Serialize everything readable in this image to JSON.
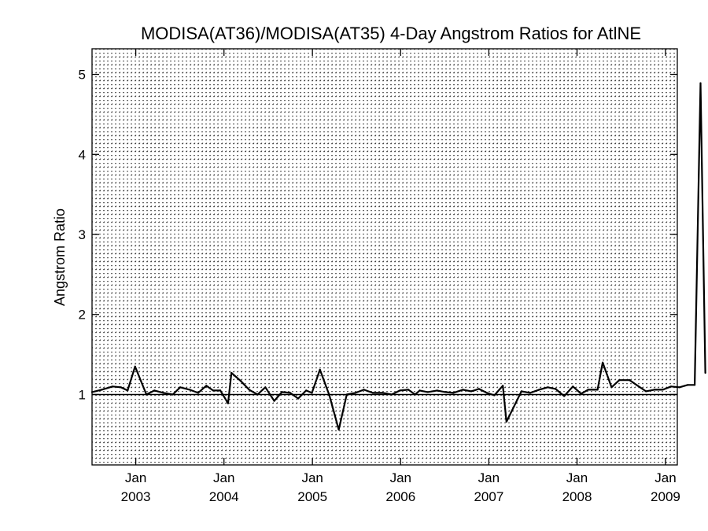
{
  "chart_data": {
    "type": "line",
    "title": "MODISA(AT36)/MODISA(AT35) 4-Day Angstrom Ratios for AtlNE",
    "xlabel": "",
    "ylabel": "Angstrom Ratio",
    "xlim": [
      "2002-07-04",
      "2009-02-19"
    ],
    "ylim": [
      0.12,
      5.32
    ],
    "x_ticks": [
      {
        "date": "2003-01-01",
        "label": "Jan",
        "year": "2003"
      },
      {
        "date": "2004-01-01",
        "label": "Jan",
        "year": "2004"
      },
      {
        "date": "2005-01-01",
        "label": "Jan",
        "year": "2005"
      },
      {
        "date": "2006-01-01",
        "label": "Jan",
        "year": "2006"
      },
      {
        "date": "2007-01-01",
        "label": "Jan",
        "year": "2007"
      },
      {
        "date": "2008-01-01",
        "label": "Jan",
        "year": "2008"
      },
      {
        "date": "2009-01-01",
        "label": "Jan",
        "year": "2009"
      }
    ],
    "y_ticks": [
      1,
      2,
      3,
      4,
      5
    ],
    "grid": "dotted",
    "reference_line": 1.0,
    "line_color": "#000000",
    "series": [
      {
        "points": [
          [
            "2002-07-04",
            1.03
          ],
          [
            "2002-08-13",
            1.06
          ],
          [
            "2002-09-27",
            1.1
          ],
          [
            "2002-10-31",
            1.09
          ],
          [
            "2002-11-28",
            1.05
          ],
          [
            "2002-12-29",
            1.35
          ],
          [
            "2003-02-14",
            1.0
          ],
          [
            "2003-03-19",
            1.05
          ],
          [
            "2003-04-26",
            1.02
          ],
          [
            "2003-06-03",
            1.0
          ],
          [
            "2003-07-04",
            1.09
          ],
          [
            "2003-08-12",
            1.06
          ],
          [
            "2003-09-16",
            1.02
          ],
          [
            "2003-10-20",
            1.11
          ],
          [
            "2003-11-17",
            1.05
          ],
          [
            "2003-12-17",
            1.05
          ],
          [
            "2004-01-18",
            0.89
          ],
          [
            "2004-02-01",
            1.27
          ],
          [
            "2004-03-10",
            1.17
          ],
          [
            "2004-04-14",
            1.06
          ],
          [
            "2004-05-19",
            1.0
          ],
          [
            "2004-06-20",
            1.09
          ],
          [
            "2004-07-27",
            0.92
          ],
          [
            "2004-08-28",
            1.03
          ],
          [
            "2004-10-01",
            1.02
          ],
          [
            "2004-11-03",
            0.95
          ],
          [
            "2004-12-06",
            1.05
          ],
          [
            "2004-12-30",
            1.02
          ],
          [
            "2005-02-01",
            1.31
          ],
          [
            "2005-03-12",
            0.99
          ],
          [
            "2005-04-20",
            0.56
          ],
          [
            "2005-05-23",
            1.0
          ],
          [
            "2005-06-28",
            1.02
          ],
          [
            "2005-08-02",
            1.06
          ],
          [
            "2005-09-08",
            1.02
          ],
          [
            "2005-10-20",
            1.02
          ],
          [
            "2005-11-25",
            1.0
          ],
          [
            "2005-12-29",
            1.05
          ],
          [
            "2006-02-02",
            1.06
          ],
          [
            "2006-03-02",
            1.0
          ],
          [
            "2006-03-21",
            1.05
          ],
          [
            "2006-04-23",
            1.03
          ],
          [
            "2006-06-01",
            1.05
          ],
          [
            "2006-07-05",
            1.03
          ],
          [
            "2006-08-07",
            1.02
          ],
          [
            "2006-09-16",
            1.06
          ],
          [
            "2006-10-20",
            1.04
          ],
          [
            "2006-11-21",
            1.07
          ],
          [
            "2006-12-24",
            1.02
          ],
          [
            "2007-01-24",
            0.99
          ],
          [
            "2007-02-28",
            1.11
          ],
          [
            "2007-03-15",
            0.66
          ],
          [
            "2007-05-16",
            1.04
          ],
          [
            "2007-06-21",
            1.02
          ],
          [
            "2007-07-28",
            1.06
          ],
          [
            "2007-09-02",
            1.09
          ],
          [
            "2007-10-04",
            1.07
          ],
          [
            "2007-11-09",
            0.98
          ],
          [
            "2007-12-15",
            1.1
          ],
          [
            "2008-01-18",
            1.01
          ],
          [
            "2008-02-16",
            1.06
          ],
          [
            "2008-03-26",
            1.06
          ],
          [
            "2008-04-16",
            1.4
          ],
          [
            "2008-05-23",
            1.09
          ],
          [
            "2008-06-24",
            1.18
          ],
          [
            "2008-08-05",
            1.18
          ],
          [
            "2008-09-08",
            1.11
          ],
          [
            "2008-10-12",
            1.04
          ],
          [
            "2008-11-16",
            1.06
          ],
          [
            "2008-12-21",
            1.06
          ],
          [
            "2009-01-24",
            1.1
          ],
          [
            "2009-02-28",
            1.09
          ],
          [
            "2009-04-03",
            1.12
          ],
          [
            "2009-05-02",
            1.12
          ],
          [
            "2009-05-26",
            4.89
          ],
          [
            "2009-06-15",
            1.27
          ]
        ]
      }
    ]
  }
}
